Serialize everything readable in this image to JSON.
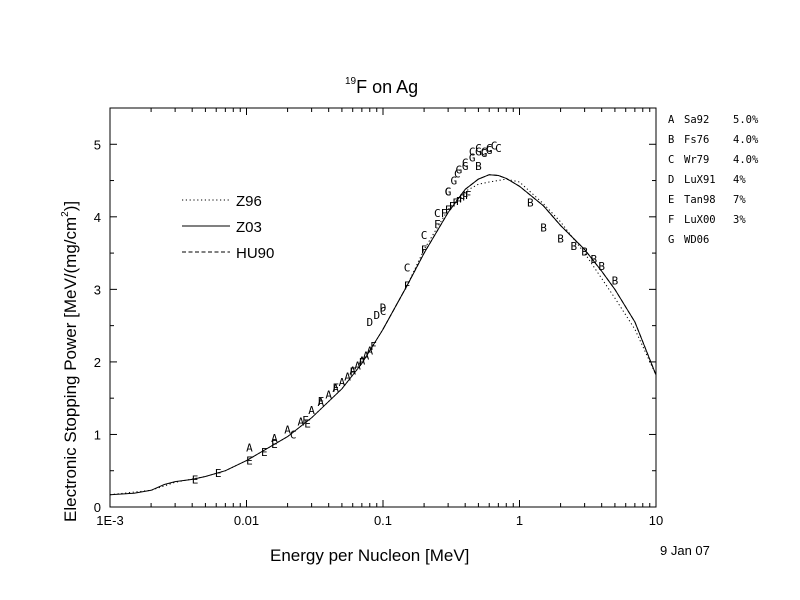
{
  "chart_data": {
    "type": "line",
    "title": {
      "sup": "19",
      "text": "F on Ag"
    },
    "xlabel": "Energy per Nucleon [MeV]",
    "ylabel": {
      "prefix": "Electronic Stopping Power [MeV/(mg/cm",
      "sup": "2",
      "suffix": ")]"
    },
    "xscale": "log",
    "xlim": [
      0.001,
      10
    ],
    "ylim": [
      0,
      5.5
    ],
    "xticks": [
      {
        "value": 0.001,
        "label": "1E-3"
      },
      {
        "value": 0.01,
        "label": "0.01"
      },
      {
        "value": 0.1,
        "label": "0.1"
      },
      {
        "value": 1,
        "label": "1"
      },
      {
        "value": 10,
        "label": "10"
      }
    ],
    "yticks": [
      {
        "value": 0,
        "label": "0"
      },
      {
        "value": 1,
        "label": "1"
      },
      {
        "value": 2,
        "label": "2"
      },
      {
        "value": 3,
        "label": "3"
      },
      {
        "value": 4,
        "label": "4"
      },
      {
        "value": 5,
        "label": "5"
      }
    ],
    "legend_position": "upper-left",
    "series": [
      {
        "name": "Z96",
        "style": "dotted",
        "x": [
          0.001,
          0.002,
          0.003,
          0.005,
          0.007,
          0.01,
          0.02,
          0.03,
          0.05,
          0.07,
          0.1,
          0.15,
          0.2,
          0.3,
          0.4,
          0.5,
          0.6,
          0.7,
          0.8,
          1,
          1.5,
          2,
          3,
          4,
          5,
          7,
          10
        ],
        "y": [
          0.17,
          0.23,
          0.34,
          0.42,
          0.5,
          0.64,
          0.97,
          1.23,
          1.63,
          1.98,
          2.45,
          3.05,
          3.55,
          4.1,
          4.35,
          4.45,
          4.48,
          4.5,
          4.52,
          4.48,
          4.18,
          3.93,
          3.5,
          3.15,
          2.88,
          2.45,
          1.82
        ]
      },
      {
        "name": "Z03",
        "style": "solid",
        "x": [
          0.001,
          0.0015,
          0.002,
          0.0025,
          0.003,
          0.004,
          0.005,
          0.007,
          0.01,
          0.02,
          0.03,
          0.05,
          0.07,
          0.1,
          0.15,
          0.2,
          0.3,
          0.4,
          0.5,
          0.6,
          0.7,
          0.8,
          1,
          1.5,
          2,
          3,
          4,
          5,
          7,
          10
        ],
        "y": [
          0.17,
          0.19,
          0.23,
          0.31,
          0.35,
          0.38,
          0.42,
          0.5,
          0.64,
          0.97,
          1.23,
          1.63,
          1.98,
          2.45,
          3.05,
          3.5,
          4.06,
          4.38,
          4.52,
          4.58,
          4.57,
          4.53,
          4.42,
          4.15,
          3.88,
          3.55,
          3.25,
          3.0,
          2.55,
          1.82
        ]
      },
      {
        "name": "HU90",
        "style": "dashed",
        "x": [
          0.1,
          0.15,
          0.2,
          0.3,
          0.4,
          0.5,
          0.6,
          0.7,
          0.8,
          1,
          1.5,
          2,
          3,
          4,
          5,
          7,
          10
        ],
        "y": [
          2.45,
          3.05,
          3.5,
          4.06,
          4.38,
          4.52,
          4.58,
          4.57,
          4.53,
          4.42,
          4.15,
          3.88,
          3.55,
          3.25,
          3.0,
          2.55,
          1.82
        ]
      }
    ],
    "points": [
      {
        "set": "A",
        "x": [
          0.0105,
          0.016,
          0.02,
          0.025,
          0.03,
          0.035,
          0.04,
          0.045,
          0.05,
          0.055,
          0.06,
          0.065,
          0.07,
          0.075,
          0.08
        ],
        "y": [
          0.82,
          0.95,
          1.07,
          1.18,
          1.34,
          1.45,
          1.55,
          1.64,
          1.72,
          1.8,
          1.88,
          1.95,
          2.02,
          2.09,
          2.16
        ]
      },
      {
        "set": "B",
        "x": [
          0.5,
          1.2,
          1.5,
          2,
          2.5,
          3,
          3.5,
          4,
          5
        ],
        "y": [
          4.7,
          4.2,
          3.85,
          3.7,
          3.6,
          3.52,
          3.42,
          3.32,
          3.12
        ]
      },
      {
        "set": "C",
        "x": [
          0.022,
          0.1,
          0.15,
          0.2,
          0.25,
          0.3,
          0.35,
          0.4,
          0.45,
          0.5,
          0.55,
          0.6,
          0.65,
          0.7
        ],
        "y": [
          1.0,
          2.7,
          3.3,
          3.75,
          4.05,
          4.35,
          4.6,
          4.75,
          4.9,
          4.95,
          4.9,
          4.95,
          4.98,
          4.95
        ]
      },
      {
        "set": "D",
        "x": [
          0.08,
          0.09,
          0.1
        ],
        "y": [
          2.55,
          2.65,
          2.75
        ]
      },
      {
        "set": "E",
        "x": [
          0.0042,
          0.0062,
          0.0105,
          0.0135,
          0.016,
          0.028
        ],
        "y": [
          0.38,
          0.47,
          0.64,
          0.76,
          0.87,
          1.15
        ]
      },
      {
        "set": "F",
        "x": [
          0.027,
          0.035,
          0.045,
          0.06,
          0.07,
          0.085,
          0.15,
          0.2,
          0.25,
          0.28,
          0.3,
          0.32,
          0.34,
          0.36,
          0.38,
          0.4,
          0.42
        ],
        "y": [
          1.2,
          1.46,
          1.65,
          1.87,
          2.0,
          2.22,
          3.05,
          3.55,
          3.9,
          4.05,
          4.1,
          4.15,
          4.2,
          4.22,
          4.25,
          4.28,
          4.3
        ]
      },
      {
        "set": "G",
        "x": [
          0.3,
          0.33,
          0.36,
          0.4,
          0.45,
          0.5,
          0.55,
          0.6
        ],
        "y": [
          4.35,
          4.5,
          4.65,
          4.7,
          4.82,
          4.9,
          4.88,
          4.92
        ]
      }
    ],
    "references": [
      {
        "letter": "A",
        "name": "Sa92",
        "error": "5.0%"
      },
      {
        "letter": "B",
        "name": "Fs76",
        "error": "4.0%"
      },
      {
        "letter": "C",
        "name": "Wr79",
        "error": "4.0%"
      },
      {
        "letter": "D",
        "name": "LuX91",
        "error": "4%"
      },
      {
        "letter": "E",
        "name": "Tan98",
        "error": "7%"
      },
      {
        "letter": "F",
        "name": "LuX00",
        "error": "3%"
      },
      {
        "letter": "G",
        "name": "WD06",
        "error": ""
      }
    ],
    "date": "9 Jan 07"
  }
}
